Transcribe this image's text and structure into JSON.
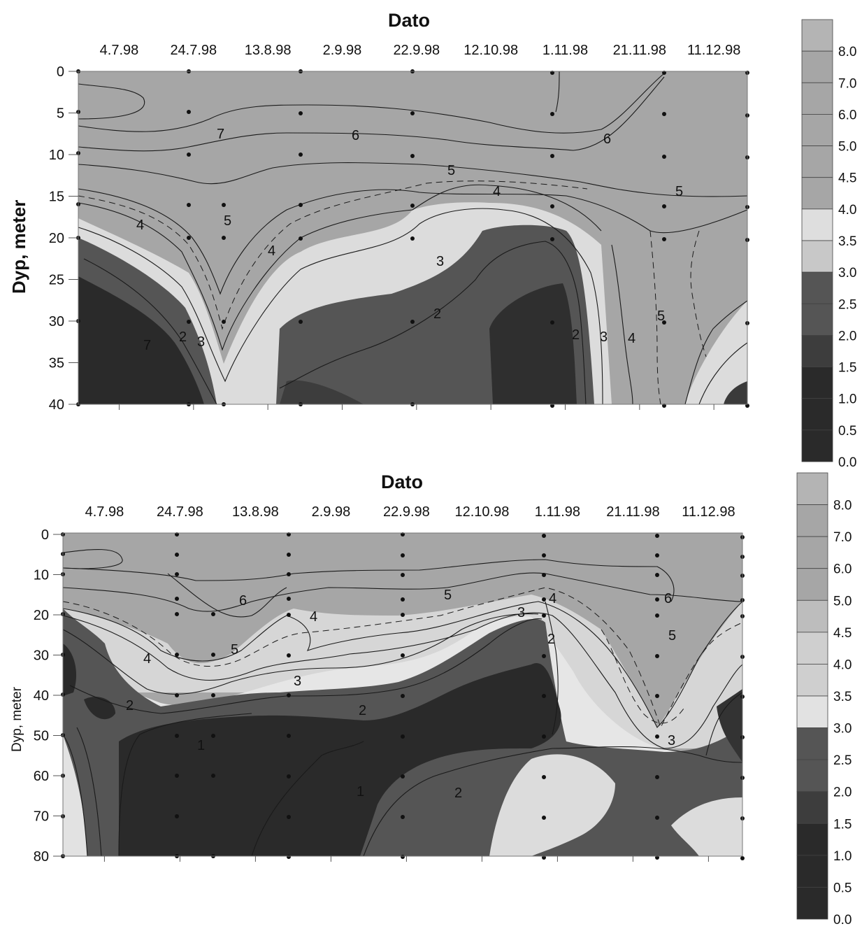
{
  "chart_data": [
    {
      "type": "contour",
      "title": "Dato",
      "ylabel": "Dyp, meter",
      "x_tick_labels": [
        "4.7.98",
        "24.7.98",
        "13.8.98",
        "2.9.98",
        "22.9.98",
        "12.10.98",
        "1.11.98",
        "21.11.98",
        "11.12.98"
      ],
      "y_tick_labels": [
        "0",
        "5",
        "10",
        "15",
        "20",
        "25",
        "30",
        "35",
        "40"
      ],
      "ylim": [
        40,
        0
      ],
      "y_inverted": true,
      "sample_dates": [
        "4.7.98",
        "24.7.98",
        "30.7.98",
        "13.8.98",
        "3.9.98",
        "29.10.98",
        "17.11.98",
        "11.12.98"
      ],
      "sample_depths": [
        0,
        5,
        10,
        16,
        20,
        30,
        40
      ],
      "contour_levels": [
        1,
        2,
        3,
        4,
        5,
        6,
        7
      ],
      "contour_labels": [
        "7",
        "6",
        "6",
        "5",
        "5",
        "5",
        "4",
        "4",
        "4",
        "4",
        "3",
        "3",
        "3",
        "2",
        "2",
        "2",
        "5",
        "7"
      ],
      "legend_levels": [
        "0.0",
        "0.5",
        "1.0",
        "1.5",
        "2.0",
        "2.5",
        "3.0",
        "3.5",
        "4.0",
        "4.5",
        "5.0",
        "6.0",
        "7.0",
        "8.0"
      ],
      "legend_colors": [
        "#2a2a2a",
        "#2a2a2a",
        "#2a2a2a",
        "#3d3d3d",
        "#555555",
        "#555555",
        "#c8c8c8",
        "#dedede",
        "#a6a6a6",
        "#a6a6a6",
        "#a6a6a6",
        "#a6a6a6",
        "#a6a6a6",
        "#b4b4b4"
      ]
    },
    {
      "type": "contour",
      "title": "Dato",
      "ylabel": "Dyp, meter",
      "x_tick_labels": [
        "4.7.98",
        "24.7.98",
        "13.8.98",
        "2.9.98",
        "22.9.98",
        "12.10.98",
        "1.11.98",
        "21.11.98",
        "11.12.98"
      ],
      "y_tick_labels": [
        "0",
        "10",
        "20",
        "30",
        "40",
        "50",
        "60",
        "70",
        "80"
      ],
      "ylim": [
        80,
        0
      ],
      "y_inverted": true,
      "sample_dates": [
        "4.7.98",
        "24.7.98",
        "30.7.98",
        "14.8.98",
        "3.9.98",
        "29.10.98",
        "17.11.98",
        "11.12.98"
      ],
      "sample_depths": [
        0,
        5,
        10,
        16,
        20,
        30,
        40,
        50,
        60,
        70,
        80
      ],
      "contour_levels": [
        1,
        2,
        3,
        4,
        5,
        6
      ],
      "contour_labels": [
        "6",
        "5",
        "5",
        "4",
        "4",
        "4",
        "3",
        "3",
        "3",
        "2",
        "2",
        "2",
        "2",
        "1",
        "1",
        "5",
        "6"
      ],
      "legend_levels": [
        "0.0",
        "0.5",
        "1.0",
        "1.5",
        "2.0",
        "2.5",
        "3.0",
        "3.5",
        "4.0",
        "4.5",
        "5.0",
        "6.0",
        "7.0",
        "8.0"
      ],
      "legend_colors": [
        "#2a2a2a",
        "#2a2a2a",
        "#2a2a2a",
        "#3d3d3d",
        "#555555",
        "#555555",
        "#e2e2e2",
        "#cfcfcf",
        "#cfcfcf",
        "#bdbdbd",
        "#a6a6a6",
        "#a6a6a6",
        "#a6a6a6",
        "#b4b4b4"
      ]
    }
  ],
  "colors": {
    "level_7_8": "#b4b4b4",
    "level_4_7": "#a6a6a6",
    "level_3_35": "#cfcfcf",
    "level_25_3": "#e2e2e2",
    "level_15_25": "#555555",
    "level_0_15": "#2a2a2a",
    "contour_line": "#1a1a1a"
  }
}
